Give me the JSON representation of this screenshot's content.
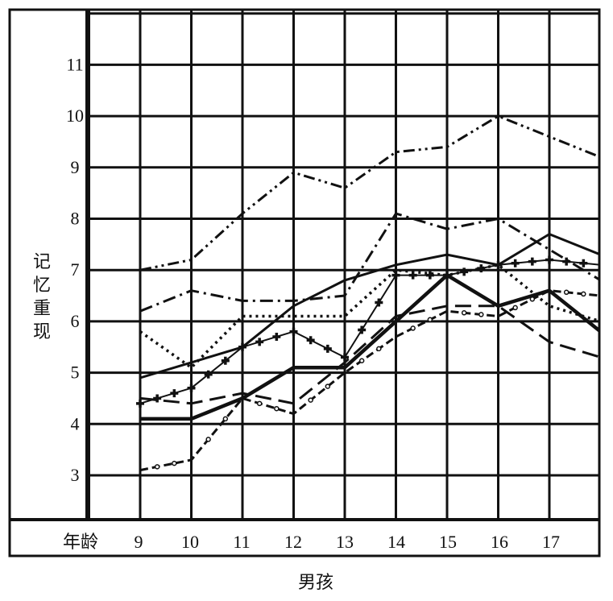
{
  "caption": "男孩",
  "chart_data": {
    "type": "line",
    "xlabel": "年龄",
    "ylabel": [
      "记",
      "忆",
      "重",
      "现"
    ],
    "x": [
      9,
      10,
      11,
      12,
      13,
      14,
      15,
      16,
      17,
      18
    ],
    "x_tick_labels": [
      "9",
      "10",
      "11",
      "12",
      "13",
      "14",
      "15",
      "16",
      "17"
    ],
    "y_tick_labels": [
      "3",
      "4",
      "5",
      "6",
      "7",
      "8",
      "9",
      "10",
      "11"
    ],
    "ylim": [
      2,
      12
    ],
    "grid": true,
    "series": [
      {
        "style": "dash-dot-dot",
        "values": [
          7.0,
          7.2,
          8.1,
          8.9,
          8.6,
          9.3,
          9.4,
          10.0,
          9.6,
          9.2
        ]
      },
      {
        "style": "dash-dot",
        "values": [
          6.2,
          6.6,
          6.4,
          6.4,
          6.5,
          8.1,
          7.8,
          8.0,
          7.4,
          6.8
        ]
      },
      {
        "style": "solid",
        "values": [
          4.9,
          5.2,
          5.5,
          6.3,
          6.8,
          7.1,
          7.3,
          7.1,
          7.7,
          7.3
        ]
      },
      {
        "style": "cross",
        "values": [
          4.4,
          4.7,
          5.5,
          5.8,
          5.3,
          6.9,
          6.9,
          7.1,
          7.2,
          7.1
        ]
      },
      {
        "style": "dotted",
        "values": [
          5.8,
          5.1,
          6.1,
          6.1,
          6.1,
          7.0,
          6.9,
          7.1,
          6.3,
          6.0
        ]
      },
      {
        "style": "long-dash",
        "values": [
          4.5,
          4.4,
          4.6,
          4.4,
          5.2,
          6.1,
          6.3,
          6.3,
          5.6,
          5.3
        ]
      },
      {
        "style": "heavy-solid",
        "values": [
          4.1,
          4.1,
          4.5,
          5.1,
          5.1,
          6.0,
          6.9,
          6.3,
          6.6,
          5.8
        ]
      },
      {
        "style": "dash-circle",
        "values": [
          3.1,
          3.3,
          4.5,
          4.2,
          5.0,
          5.7,
          6.2,
          6.1,
          6.6,
          6.5
        ]
      }
    ]
  }
}
